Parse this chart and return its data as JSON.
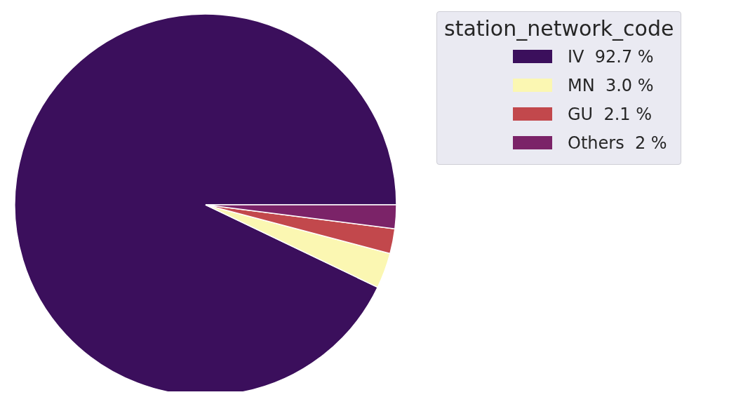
{
  "chart_data": {
    "type": "pie",
    "legend_title": "station_network_code",
    "legend": "right",
    "categories": [
      "IV",
      "MN",
      "GU",
      "Others"
    ],
    "values": [
      92.7,
      3.0,
      2.1,
      2
    ],
    "value_labels": [
      "92.7 %",
      "3.0 %",
      "2.1 %",
      "2 %"
    ],
    "colors": [
      "#3b0f5c",
      "#fbf7b2",
      "#c2484c",
      "#7b2368"
    ]
  }
}
